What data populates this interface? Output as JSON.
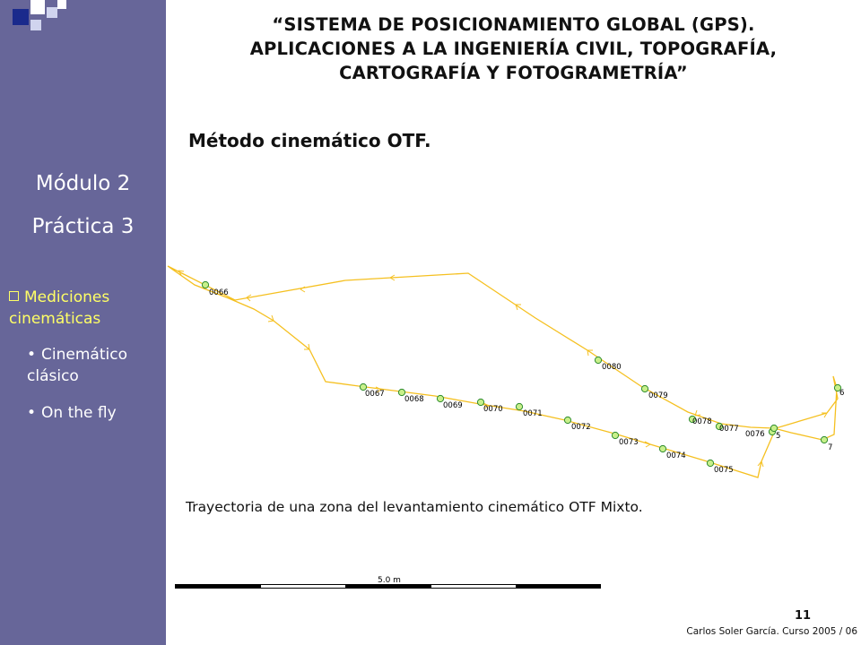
{
  "header": {
    "title_lines": [
      "“SISTEMA DE POSICIONAMIENTO GLOBAL (GPS).",
      "APLICACIONES A LA INGENIERÍA CIVIL, TOPOGRAFÍA,",
      "CARTOGRAFÍA Y FOTOGRAMETRÍA”"
    ]
  },
  "slide": {
    "subtitle": "Método cinemático OTF.",
    "caption": "Trayectoria de una zona del levantamiento cinemático OTF Mixto.",
    "page_number": "11",
    "credit": "Carlos Soler García. Curso 2005 / 06"
  },
  "sidebar": {
    "module": "Módulo 2",
    "practice": "Práctica 3",
    "section": "Mediciones cinemáticas",
    "items": [
      "Cinemático clásico",
      "On the fly"
    ]
  },
  "diagram": {
    "point_labels": [
      "0066",
      "0067",
      "0068",
      "0069",
      "0070",
      "0071",
      "0072",
      "0073",
      "0074",
      "0075",
      "0076",
      "0077",
      "0078",
      "0079",
      "0080",
      "5",
      "6",
      "7"
    ],
    "scale_label": "5.0 m"
  },
  "colors": {
    "sidebar_bg": "#676699",
    "sidebar_accent": "#ffff66",
    "trajectory": "#f5c020",
    "point_fill": "#c8f08a",
    "point_stroke": "#2e8b2e",
    "logo_blue": "#1a2a8c",
    "logo_light": "#d0d4ee"
  }
}
